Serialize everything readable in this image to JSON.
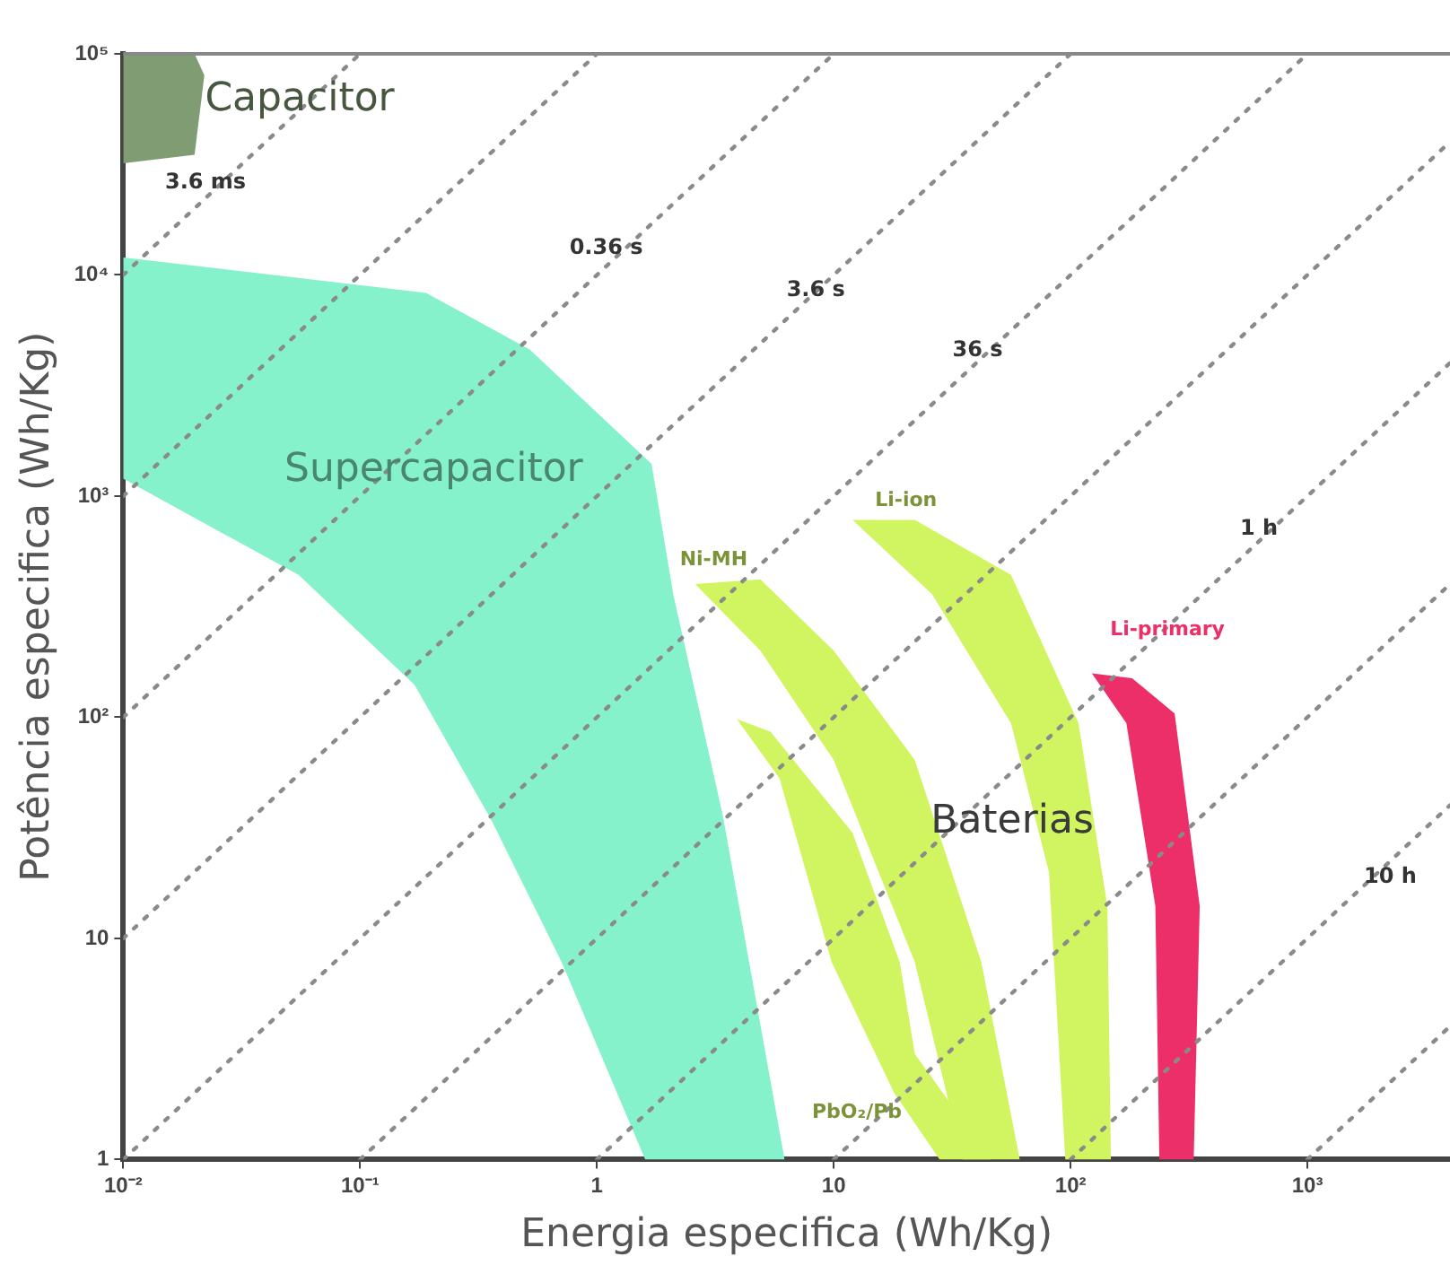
{
  "chart_data": {
    "type": "area",
    "xlabel": "Energia especifica (Wh/Kg)",
    "ylabel": "Potência especifica (Wh/Kg)",
    "log": "xy",
    "grid": false,
    "legend": false,
    "marker": "none",
    "xlim": [
      0.01,
      4000
    ],
    "ylim": [
      1,
      100000
    ],
    "xticks": [
      {
        "value": 0.01,
        "label": "10⁻²"
      },
      {
        "value": 0.1,
        "label": "10⁻¹"
      },
      1,
      10,
      {
        "value": 100,
        "label": "10²"
      },
      {
        "value": 1000,
        "label": "10³"
      }
    ],
    "yticks": [
      1,
      10,
      {
        "value": 100,
        "label": "10²"
      },
      {
        "value": 1000,
        "label": "10³"
      },
      {
        "value": 10000,
        "label": "10⁴"
      },
      {
        "value": 100000,
        "label": "10⁵"
      }
    ],
    "series": [
      {
        "name": "Capacitor",
        "color": "#7f9c72",
        "x": [
          0.01,
          0.02,
          0.022,
          0.02,
          0.01
        ],
        "values": [
          100000,
          100000,
          80000,
          35000,
          32000
        ]
      },
      {
        "name": "Supercapacitor",
        "color": "#85f2cb",
        "x": [
          0.01,
          0.19,
          0.52,
          1.7,
          2.1,
          3.4,
          6.2,
          1.6,
          0.71,
          0.36,
          0.17,
          0.055,
          0.01
        ],
        "values": [
          12000,
          8300,
          4600,
          1400,
          360,
          36,
          1,
          1,
          7.8,
          34,
          140,
          440,
          1200
        ]
      },
      {
        "name": "PbO₂/Pb",
        "color": "#d0f560",
        "x": [
          3.9,
          5.9,
          9.8,
          18,
          28,
          46,
          22,
          19,
          12,
          5.4
        ],
        "values": [
          98,
          53,
          7.8,
          2,
          1,
          1,
          3,
          7.8,
          30,
          86
        ]
      },
      {
        "name": "Ni-MH",
        "color": "#d0f560",
        "x": [
          2.6,
          4.9,
          10,
          22,
          35,
          61,
          42,
          22,
          10,
          4.9
        ],
        "values": [
          400,
          200,
          64,
          7.8,
          1,
          1,
          7.8,
          64,
          200,
          420
        ]
      },
      {
        "name": "Li-ion",
        "color": "#d0f560",
        "x": [
          12,
          26,
          56,
          81,
          95,
          148,
          143,
          108,
          56,
          22
        ],
        "values": [
          780,
          360,
          94,
          20,
          1,
          1,
          14,
          94,
          440,
          780
        ]
      },
      {
        "name": "Li-primary",
        "color": "#ec2f68",
        "x": [
          123,
          172,
          228,
          237,
          331,
          351,
          275,
          182
        ],
        "values": [
          158,
          94,
          14,
          1,
          1,
          14,
          104,
          150
        ]
      },
      {
        "type": "line",
        "name": "3.6 ms",
        "line_style": "dotted",
        "color": "#8a8a8a",
        "x": [
          0.01,
          0.1
        ],
        "values": [
          10000,
          100000
        ]
      },
      {
        "type": "line",
        "line_style": "dotted",
        "color": "#8a8a8a",
        "x": [
          0.01,
          1
        ],
        "values": [
          1000,
          100000
        ]
      },
      {
        "type": "line",
        "name": "0.36 s",
        "line_style": "dotted",
        "color": "#8a8a8a",
        "x": [
          0.01,
          10
        ],
        "values": [
          100,
          100000
        ]
      },
      {
        "type": "line",
        "name": "3.6 s",
        "line_style": "dotted",
        "color": "#8a8a8a",
        "x": [
          0.01,
          100
        ],
        "values": [
          10,
          100000
        ]
      },
      {
        "type": "line",
        "name": "36 s",
        "line_style": "dotted",
        "color": "#8a8a8a",
        "x": [
          0.01,
          1000
        ],
        "values": [
          1,
          100000
        ]
      },
      {
        "type": "line",
        "line_style": "dotted",
        "color": "#8a8a8a",
        "x": [
          0.1,
          4000
        ],
        "values": [
          1,
          40000
        ]
      },
      {
        "type": "line",
        "name": "1 h",
        "line_style": "dotted",
        "color": "#8a8a8a",
        "x": [
          1,
          4000
        ],
        "values": [
          1,
          4000
        ]
      },
      {
        "type": "line",
        "line_style": "dotted",
        "color": "#8a8a8a",
        "x": [
          10,
          4000
        ],
        "values": [
          1,
          400
        ]
      },
      {
        "type": "line",
        "name": "10 h",
        "line_style": "dotted",
        "color": "#8a8a8a",
        "x": [
          100,
          4000
        ],
        "values": [
          1,
          40
        ]
      },
      {
        "type": "line",
        "line_style": "dotted",
        "color": "#8a8a8a",
        "x": [
          1000,
          4000
        ],
        "values": [
          1,
          4
        ]
      }
    ],
    "annotations": [
      "Baterias"
    ]
  }
}
